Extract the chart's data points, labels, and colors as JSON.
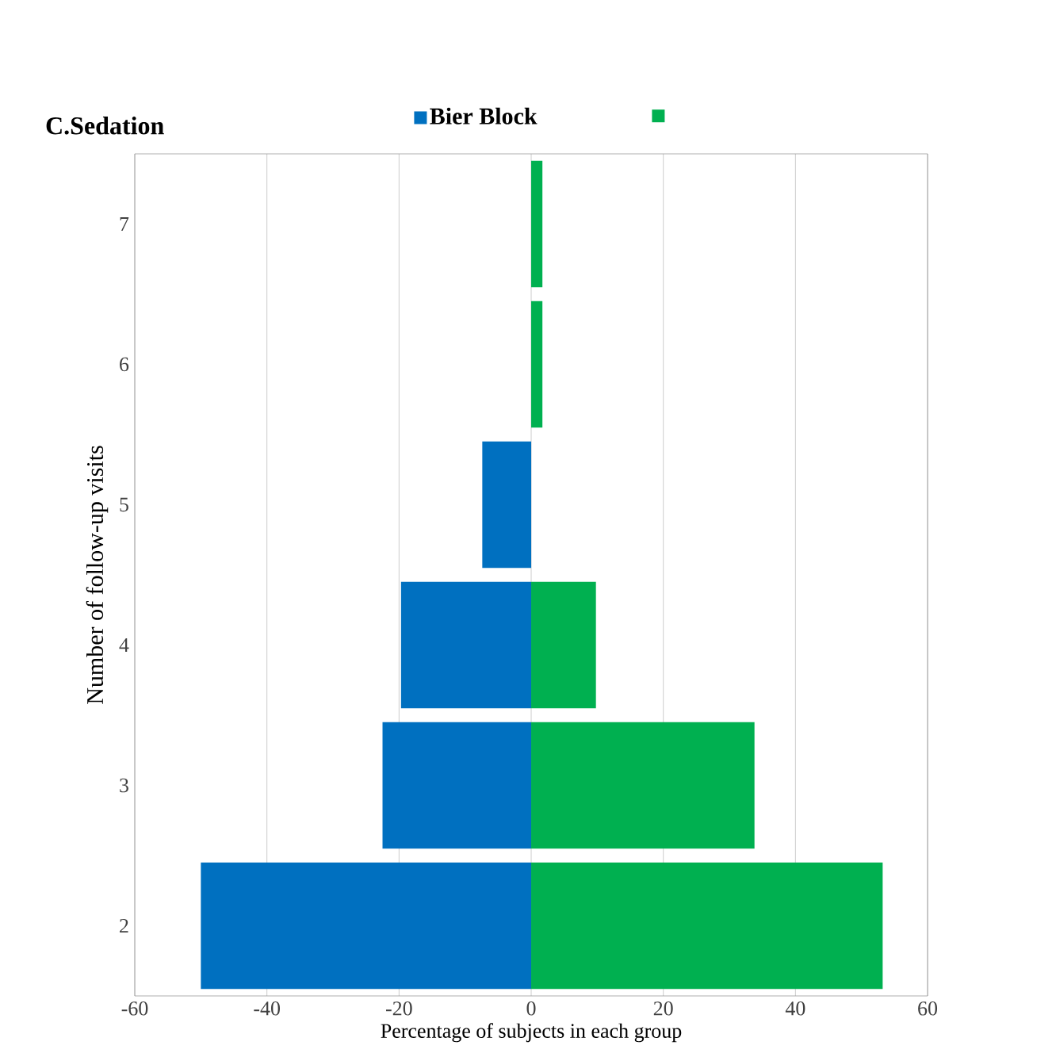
{
  "chart_data": {
    "type": "bar",
    "orientation": "horizontal",
    "title": "C.Sedation",
    "xlabel": "Percentage of subjects in each group",
    "ylabel": "Number of follow-up visits",
    "categories": [
      "7",
      "6",
      "5",
      "4",
      "3",
      "2"
    ],
    "series": [
      {
        "name": "Bier Block",
        "color": "#0070c0",
        "values": [
          0,
          0,
          -7.4,
          -19.7,
          -22.5,
          -50
        ]
      },
      {
        "color": "#00b050",
        "values": [
          1.7,
          1.7,
          null,
          9.8,
          33.8,
          53.2
        ]
      }
    ],
    "xlim": [
      -60,
      60
    ],
    "xticks": [
      -60,
      -40,
      -20,
      0,
      20,
      40,
      60
    ],
    "grid": "x",
    "legend": "top",
    "stacked": true
  }
}
